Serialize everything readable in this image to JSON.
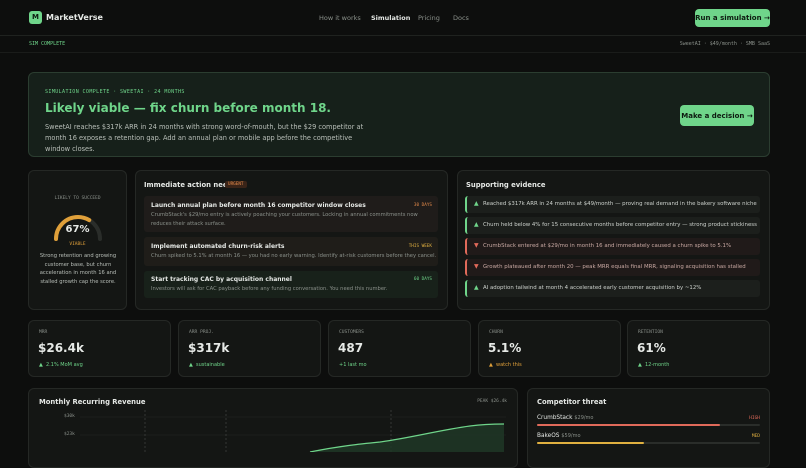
{
  "nav": {
    "logo": "M",
    "brand": "MarketVerse",
    "links": [
      "How it works",
      "Simulation",
      "Pricing",
      "Docs"
    ],
    "cta": "Run a simulation →"
  },
  "subbar": {
    "status": "SIM COMPLETE",
    "meta": "SweetAI · $49/month · SMB SaaS"
  },
  "hero": {
    "eyebrow": "SIMULATION COMPLETE · SWEETAI · 24 MONTHS",
    "title": "Likely viable — fix churn before month 18.",
    "description": "SweetAI reaches $317k ARR in 24 months with strong word-of-mouth, but the $29 competitor at month 16 exposes a retention gap. Add an annual plan or mobile app before the competitive window closes.",
    "cta": "Make a decision →"
  },
  "gauge": {
    "caption": "LIKELY TO SUCCEED",
    "value": 67,
    "label": "67%",
    "verdict": "VIABLE",
    "note": "Strong retention and growing customer base, but churn acceleration in month 16 and stalled growth cap the score."
  },
  "actions": {
    "title": "Immediate action needed",
    "badge": "URGENT",
    "items": [
      {
        "title": "Launch annual plan before month 16 competitor window closes",
        "tag": "30 DAYS",
        "text": "CrumbStack's $29/mo entry is actively poaching your customers. Locking in annual commitments now reduces their attack surface."
      },
      {
        "title": "Implement automated churn-risk alerts",
        "tag": "THIS WEEK",
        "text": "Churn spiked to 5.1% at month 16 — you had no early warning. Identify at-risk customers before they cancel."
      },
      {
        "title": "Start tracking CAC by acquisition channel",
        "tag": "60 DAYS",
        "text": "Investors will ask for CAC payback before any funding conversation. You need this number."
      }
    ]
  },
  "evidence": {
    "title": "Supporting evidence",
    "items": [
      "Reached $317k ARR in 24 months at $49/month — proving real demand in the bakery software niche",
      "Churn held below 4% for 15 consecutive months before competitor entry — strong product stickiness",
      "CrumbStack entered at $29/mo in month 16 and immediately caused a churn spike to 5.1%",
      "Growth plateaued after month 20 — peak MRR equals final MRR, signaling acquisition has stalled",
      "AI adoption tailwind at month 4 accelerated early customer acquisition by ~12%"
    ]
  },
  "kpis": [
    {
      "label": "MRR",
      "value": "$26.4k",
      "note": "2.1% MoM avg"
    },
    {
      "label": "ARR PROJ.",
      "value": "$317k",
      "note": "sustainable"
    },
    {
      "label": "CUSTOMERS",
      "value": "487",
      "note": "+1 last mo"
    },
    {
      "label": "CHURN",
      "value": "5.1%",
      "note": "watch this"
    },
    {
      "label": "RETENTION",
      "value": "61%",
      "note": "12-month"
    }
  ],
  "revenue": {
    "title": "Monthly Recurring Revenue",
    "peak": "PEAK $26.4k",
    "yticks": [
      "$30k",
      "$23k"
    ]
  },
  "competitors": {
    "title": "Competitor threat",
    "items": [
      {
        "name": "CrumbStack",
        "price": "$29/mo",
        "level": "HIGH"
      },
      {
        "name": "BakeOS",
        "price": "$59/mo",
        "level": "MED"
      }
    ]
  }
}
